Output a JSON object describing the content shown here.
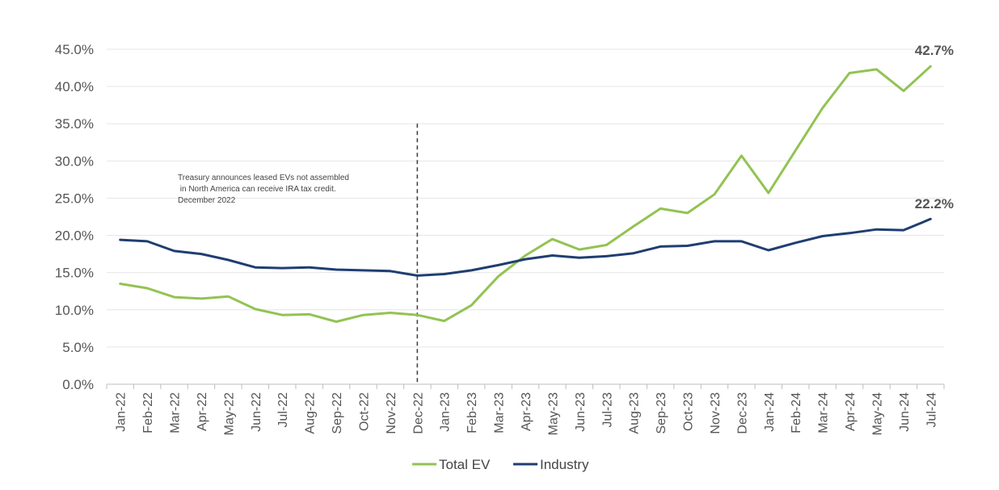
{
  "chart_data": {
    "type": "line",
    "categories": [
      "Jan-22",
      "Feb-22",
      "Mar-22",
      "Apr-22",
      "May-22",
      "Jun-22",
      "Jul-22",
      "Aug-22",
      "Sep-22",
      "Oct-22",
      "Nov-22",
      "Dec-22",
      "Jan-23",
      "Feb-23",
      "Mar-23",
      "Apr-23",
      "May-23",
      "Jun-23",
      "Jul-23",
      "Aug-23",
      "Sep-23",
      "Oct-23",
      "Nov-23",
      "Dec-23",
      "Jan-24",
      "Feb-24",
      "Mar-24",
      "Apr-24",
      "May-24",
      "Jun-24",
      "Jul-24"
    ],
    "series": [
      {
        "name": "Total EV",
        "color": "#92c353",
        "values": [
          13.5,
          12.9,
          11.7,
          11.5,
          11.8,
          10.1,
          9.3,
          9.4,
          8.4,
          9.3,
          9.6,
          9.3,
          8.5,
          10.6,
          14.5,
          17.3,
          19.5,
          18.1,
          18.7,
          21.2,
          23.6,
          23.0,
          25.5,
          30.7,
          25.7,
          31.4,
          37.1,
          41.8,
          42.3,
          39.4,
          42.7
        ]
      },
      {
        "name": "Industry",
        "color": "#1f3e72",
        "values": [
          19.4,
          19.2,
          17.9,
          17.5,
          16.7,
          15.7,
          15.6,
          15.7,
          15.4,
          15.3,
          15.2,
          14.6,
          14.8,
          15.3,
          16.0,
          16.8,
          17.3,
          17.0,
          17.2,
          17.6,
          18.5,
          18.6,
          19.2,
          19.2,
          18.0,
          19.0,
          19.9,
          20.3,
          20.8,
          20.7,
          22.2
        ]
      }
    ],
    "ylim": [
      0,
      45
    ],
    "yticks": [
      "0.0%",
      "5.0%",
      "10.0%",
      "15.0%",
      "20.0%",
      "25.0%",
      "30.0%",
      "35.0%",
      "40.0%",
      "45.0%"
    ],
    "grid": true,
    "legend_position": "bottom",
    "annotation": {
      "lines": [
        "Treasury announces leased EVs not assembled",
        " in North America can receive IRA tax credit.",
        "December 2022"
      ],
      "event_category": "Dec-22",
      "line_top_value": 35
    },
    "end_labels": [
      "42.7%",
      "22.2%"
    ]
  }
}
